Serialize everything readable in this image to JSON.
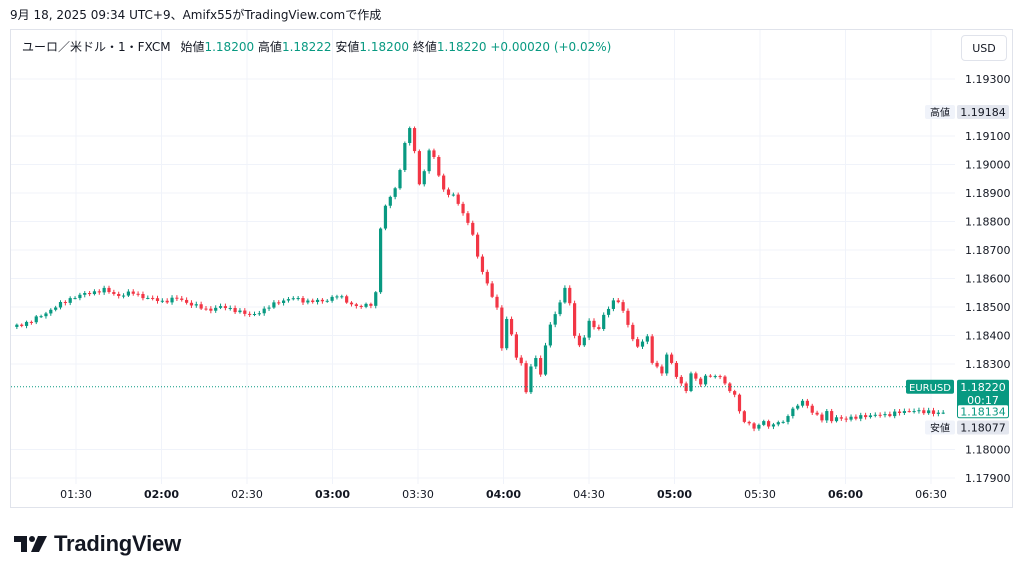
{
  "caption": "9月 18, 2025 09:34 UTC+9、Amifx55がTradingView.comで作成",
  "legend": {
    "symbol": "ユーロ／米ドル・1・FXCM",
    "open_label": "始値",
    "open": "1.18200",
    "high_label": "高値",
    "high": "1.18222",
    "low_label": "安値",
    "low": "1.18200",
    "close_label": "終値",
    "close": "1.18220",
    "change": "+0.00020 (+0.02%)"
  },
  "currency_button": "USD",
  "logo_text": "TradingView",
  "colors": {
    "up": "#089981",
    "down": "#f23645",
    "grid": "#f0f3fa",
    "text": "#131722"
  },
  "chart_data": {
    "type": "candlestick",
    "x_ticks": [
      {
        "label": "01:30",
        "bold": false
      },
      {
        "label": "02:00",
        "bold": true
      },
      {
        "label": "02:30",
        "bold": false
      },
      {
        "label": "03:00",
        "bold": true
      },
      {
        "label": "03:30",
        "bold": false
      },
      {
        "label": "04:00",
        "bold": true
      },
      {
        "label": "04:30",
        "bold": false
      },
      {
        "label": "05:00",
        "bold": true
      },
      {
        "label": "05:30",
        "bold": false
      },
      {
        "label": "06:00",
        "bold": true
      },
      {
        "label": "06:30",
        "bold": false
      }
    ],
    "y_ticks": [
      "1.19300",
      "1.19100",
      "1.19000",
      "1.18900",
      "1.18800",
      "1.18700",
      "1.18600",
      "1.18500",
      "1.18400",
      "1.18300",
      "1.18000",
      "1.17900"
    ],
    "ylim": [
      1.1785,
      1.1945
    ],
    "markers": [
      {
        "tag": "高値",
        "value": "1.19184",
        "price": 1.19184
      },
      {
        "tag": "EURUSD",
        "value": "1.18220",
        "countdown": "00:17",
        "price": 1.1822
      },
      {
        "tag": "",
        "value": "1.18134",
        "price": 1.18134
      },
      {
        "tag": "安値",
        "value": "1.18077",
        "price": 1.18077
      }
    ],
    "last_price": 1.1822,
    "close_path": [
      [
        0,
        1.1843
      ],
      [
        4,
        1.1845
      ],
      [
        8,
        1.1849
      ],
      [
        12,
        1.1853
      ],
      [
        16,
        1.1855
      ],
      [
        19,
        1.1856
      ],
      [
        22,
        1.1854
      ],
      [
        25,
        1.1855
      ],
      [
        28,
        1.1853
      ],
      [
        31,
        1.1852
      ],
      [
        34,
        1.1853
      ],
      [
        37,
        1.1851
      ],
      [
        40,
        1.1849
      ],
      [
        43,
        1.185
      ],
      [
        46,
        1.1849
      ],
      [
        49,
        1.1847
      ],
      [
        52,
        1.1849
      ],
      [
        55,
        1.1852
      ],
      [
        58,
        1.1853
      ],
      [
        61,
        1.1852
      ],
      [
        64,
        1.1852
      ],
      [
        67,
        1.1854
      ],
      [
        70,
        1.1851
      ],
      [
        72,
        1.185
      ],
      [
        74,
        1.1851
      ],
      [
        75,
        1.1855
      ],
      [
        76,
        1.1878
      ],
      [
        77,
        1.1885
      ],
      [
        79,
        1.1892
      ],
      [
        80,
        1.1898
      ],
      [
        81,
        1.1908
      ],
      [
        82,
        1.1912
      ],
      [
        83,
        1.1905
      ],
      [
        84,
        1.1893
      ],
      [
        85,
        1.1898
      ],
      [
        86,
        1.1905
      ],
      [
        87,
        1.1902
      ],
      [
        89,
        1.1891
      ],
      [
        91,
        1.1889
      ],
      [
        93,
        1.1883
      ],
      [
        95,
        1.1876
      ],
      [
        96,
        1.1867
      ],
      [
        98,
        1.1858
      ],
      [
        100,
        1.185
      ],
      [
        101,
        1.1835
      ],
      [
        102,
        1.1846
      ],
      [
        103,
        1.184
      ],
      [
        104,
        1.1833
      ],
      [
        105,
        1.183
      ],
      [
        106,
        1.182
      ],
      [
        107,
        1.1829
      ],
      [
        108,
        1.1832
      ],
      [
        109,
        1.1827
      ],
      [
        110,
        1.1836
      ],
      [
        111,
        1.1844
      ],
      [
        112,
        1.1847
      ],
      [
        113,
        1.1852
      ],
      [
        114,
        1.1857
      ],
      [
        115,
        1.1851
      ],
      [
        116,
        1.184
      ],
      [
        117,
        1.1836
      ],
      [
        118,
        1.184
      ],
      [
        119,
        1.1845
      ],
      [
        120,
        1.1843
      ],
      [
        121,
        1.1842
      ],
      [
        122,
        1.1847
      ],
      [
        123,
        1.185
      ],
      [
        124,
        1.1852
      ],
      [
        125,
        1.1852
      ],
      [
        126,
        1.1848
      ],
      [
        127,
        1.1844
      ],
      [
        128,
        1.1839
      ],
      [
        129,
        1.1836
      ],
      [
        130,
        1.1838
      ],
      [
        131,
        1.1839
      ],
      [
        132,
        1.1831
      ],
      [
        133,
        1.1829
      ],
      [
        134,
        1.1827
      ],
      [
        135,
        1.1833
      ],
      [
        136,
        1.183
      ],
      [
        137,
        1.1826
      ],
      [
        138,
        1.1823
      ],
      [
        139,
        1.1821
      ],
      [
        140,
        1.1826
      ],
      [
        141,
        1.1825
      ],
      [
        142,
        1.1823
      ],
      [
        143,
        1.1826
      ],
      [
        144,
        1.1826
      ],
      [
        145,
        1.1825
      ],
      [
        146,
        1.1826
      ],
      [
        147,
        1.1823
      ],
      [
        148,
        1.1821
      ],
      [
        149,
        1.1819
      ],
      [
        150,
        1.1813
      ],
      [
        151,
        1.181
      ],
      [
        152,
        1.1809
      ],
      [
        153,
        1.1808
      ],
      [
        154,
        1.1808
      ],
      [
        155,
        1.181
      ],
      [
        156,
        1.1808
      ],
      [
        157,
        1.1809
      ],
      [
        158,
        1.181
      ],
      [
        159,
        1.1809
      ],
      [
        160,
        1.1812
      ],
      [
        161,
        1.1814
      ],
      [
        162,
        1.1816
      ],
      [
        163,
        1.1817
      ],
      [
        164,
        1.1815
      ],
      [
        165,
        1.1813
      ],
      [
        166,
        1.1812
      ],
      [
        167,
        1.1811
      ],
      [
        168,
        1.1813
      ],
      [
        169,
        1.181
      ],
      [
        170,
        1.1811
      ],
      [
        172,
        1.1811
      ],
      [
        174,
        1.1811
      ],
      [
        176,
        1.1812
      ],
      [
        178,
        1.1812
      ],
      [
        180,
        1.1812
      ],
      [
        182,
        1.1813
      ],
      [
        184,
        1.1813
      ],
      [
        186,
        1.1814
      ],
      [
        188,
        1.1813
      ],
      [
        190,
        1.1813
      ],
      [
        192,
        1.1813
      ]
    ]
  }
}
